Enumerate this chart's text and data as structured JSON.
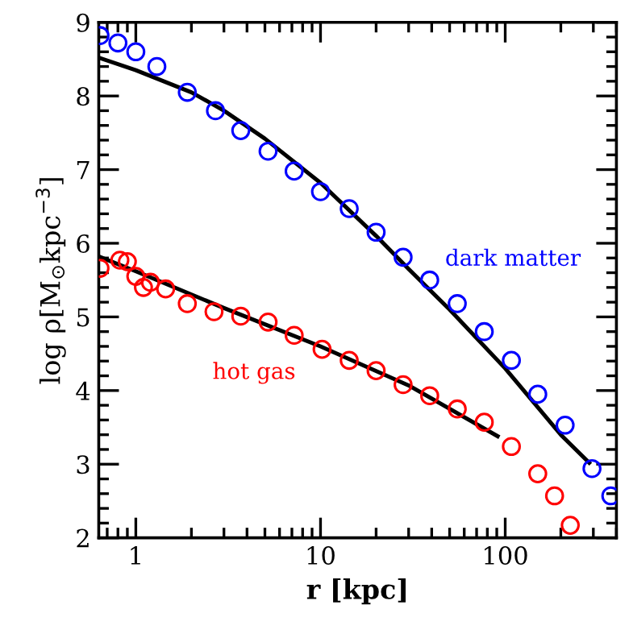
{
  "chart_data": {
    "type": "scatter",
    "xlabel": "r [kpc]",
    "ylabel": "log ρ[M$_{⊙}$kpc$^{−3}$]",
    "log": "x",
    "xlim": [
      0.63,
      400
    ],
    "xticks": [
      1,
      10,
      100
    ],
    "ylim": [
      2,
      9
    ],
    "yticks": [
      2,
      3,
      4,
      5,
      6,
      7,
      8,
      9
    ],
    "grid": false,
    "series": [
      {
        "name": "dark matter",
        "marker": "circle",
        "color": "#0000ff",
        "x": [
          0.64,
          0.8,
          1.0,
          1.3,
          1.9,
          2.7,
          3.7,
          5.2,
          7.2,
          10,
          14.3,
          20,
          28,
          39,
          55,
          77,
          108,
          150,
          211,
          295,
          373
        ],
        "values": [
          8.82,
          8.72,
          8.6,
          8.4,
          8.05,
          7.8,
          7.53,
          7.25,
          6.98,
          6.7,
          6.47,
          6.15,
          5.81,
          5.5,
          5.18,
          4.8,
          4.41,
          3.95,
          3.53,
          2.94,
          2.57
        ]
      },
      {
        "name": "hot gas",
        "marker": "circle",
        "color": "#ff0000",
        "x": [
          0.64,
          0.82,
          0.9,
          1.0,
          1.1,
          1.2,
          1.45,
          1.9,
          2.65,
          3.7,
          5.2,
          7.2,
          10.2,
          14.3,
          20,
          28,
          39,
          55,
          77,
          108,
          150,
          185,
          225
        ],
        "values": [
          5.66,
          5.77,
          5.75,
          5.55,
          5.4,
          5.47,
          5.38,
          5.18,
          5.07,
          5.01,
          4.93,
          4.75,
          4.56,
          4.41,
          4.27,
          4.08,
          3.93,
          3.75,
          3.57,
          3.24,
          2.87,
          2.57,
          2.17
        ]
      },
      {
        "type": "line",
        "marker": "none",
        "line_style": "solid",
        "color": "#000000",
        "x": [
          0.63,
          1,
          2,
          3,
          5,
          10,
          20,
          30,
          50,
          100,
          200,
          285
        ],
        "values": [
          8.52,
          8.35,
          8.05,
          7.8,
          7.42,
          6.82,
          6.1,
          5.65,
          5.1,
          4.3,
          3.4,
          3.02
        ]
      },
      {
        "type": "line",
        "marker": "none",
        "line_style": "solid",
        "color": "#000000",
        "x": [
          0.63,
          1,
          3,
          10,
          30,
          91
        ],
        "values": [
          5.82,
          5.62,
          5.12,
          4.6,
          4.07,
          3.38
        ]
      }
    ]
  }
}
